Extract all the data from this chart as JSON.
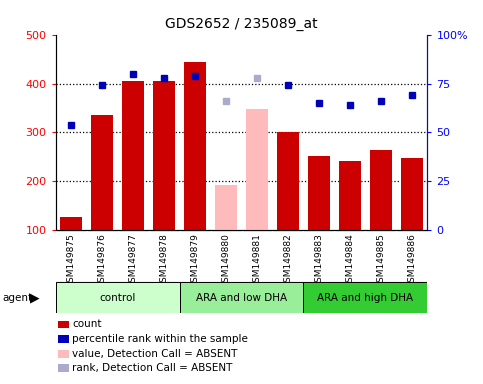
{
  "title": "GDS2652 / 235089_at",
  "samples": [
    "GSM149875",
    "GSM149876",
    "GSM149877",
    "GSM149878",
    "GSM149879",
    "GSM149880",
    "GSM149881",
    "GSM149882",
    "GSM149883",
    "GSM149884",
    "GSM149885",
    "GSM149886"
  ],
  "bar_values": [
    128,
    336,
    405,
    405,
    443,
    192,
    347,
    300,
    252,
    242,
    265,
    248
  ],
  "bar_absent": [
    false,
    false,
    false,
    false,
    false,
    true,
    true,
    false,
    false,
    false,
    false,
    false
  ],
  "percentile_values": [
    54,
    74,
    80,
    78,
    79,
    66,
    78,
    74,
    65,
    64,
    66,
    69
  ],
  "percentile_absent": [
    false,
    false,
    false,
    false,
    false,
    true,
    true,
    false,
    false,
    false,
    false,
    false
  ],
  "bar_color_present": "#cc0000",
  "bar_color_absent": "#ffbbbb",
  "dot_color_present": "#0000bb",
  "dot_color_absent": "#aaaacc",
  "groups": [
    {
      "label": "control",
      "start": 0,
      "end": 4,
      "color": "#ccffcc"
    },
    {
      "label": "ARA and low DHA",
      "start": 4,
      "end": 8,
      "color": "#99ee99"
    },
    {
      "label": "ARA and high DHA",
      "start": 8,
      "end": 12,
      "color": "#33cc33"
    }
  ],
  "ylim_left": [
    100,
    500
  ],
  "ylim_right": [
    0,
    100
  ],
  "yticks_left": [
    100,
    200,
    300,
    400,
    500
  ],
  "ytick_labels_left": [
    "100",
    "200",
    "300",
    "400",
    "500"
  ],
  "yticks_right": [
    0,
    25,
    50,
    75,
    100
  ],
  "ytick_labels_right": [
    "0",
    "25",
    "50",
    "75",
    "100%"
  ],
  "hlines": [
    200,
    300,
    400
  ],
  "background_color": "#ffffff",
  "legend_items": [
    {
      "label": "count",
      "color": "#cc0000",
      "type": "square"
    },
    {
      "label": "percentile rank within the sample",
      "color": "#0000bb",
      "type": "square"
    },
    {
      "label": "value, Detection Call = ABSENT",
      "color": "#ffbbbb",
      "type": "square"
    },
    {
      "label": "rank, Detection Call = ABSENT",
      "color": "#aaaacc",
      "type": "square"
    }
  ]
}
